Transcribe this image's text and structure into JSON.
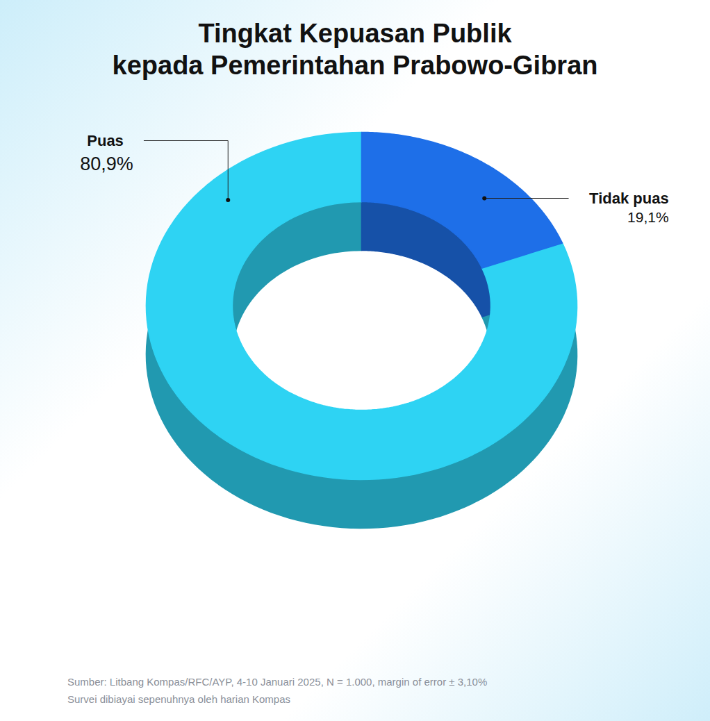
{
  "chart_data": {
    "type": "donut",
    "title": [
      "Tingkat Kepuasan Publik",
      "kepada Pemerintahan Prabowo-Gibran"
    ],
    "categories": [
      "Puas",
      "Tidak puas"
    ],
    "values": [
      80.9,
      19.1
    ],
    "value_labels": [
      "80,9%",
      "19,1%"
    ],
    "colors": [
      "#2ed3f3",
      "#1e6fe8"
    ],
    "data_labels": true,
    "caption": [
      "Sumber: Litbang Kompas/RFC/AYP, 4-10 Januari 2025, N = 1.000, margin of error ± 3,10%",
      "Survei dibiayai sepenuhnya oleh harian Kompas"
    ]
  }
}
